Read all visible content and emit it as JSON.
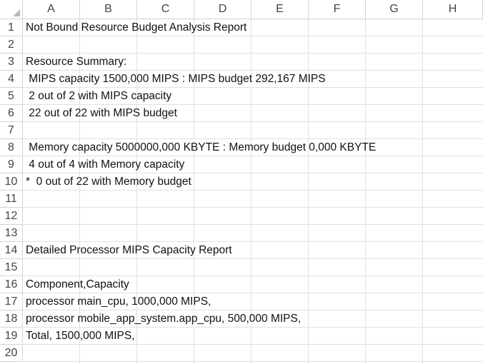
{
  "columns": [
    "A",
    "B",
    "C",
    "D",
    "E",
    "F",
    "G",
    "H"
  ],
  "rows": [
    "1",
    "2",
    "3",
    "4",
    "5",
    "6",
    "7",
    "8",
    "9",
    "10",
    "11",
    "12",
    "13",
    "14",
    "15",
    "16",
    "17",
    "18",
    "19",
    "20"
  ],
  "cells": [
    {
      "row": 1,
      "text": "Not Bound Resource Budget Analysis Report"
    },
    {
      "row": 2,
      "text": ""
    },
    {
      "row": 3,
      "text": "Resource Summary:"
    },
    {
      "row": 4,
      "text": " MIPS capacity 1500,000 MIPS : MIPS budget 292,167 MIPS"
    },
    {
      "row": 5,
      "text": " 2 out of 2 with MIPS capacity"
    },
    {
      "row": 6,
      "text": " 22 out of 22 with MIPS budget"
    },
    {
      "row": 7,
      "text": ""
    },
    {
      "row": 8,
      "text": " Memory capacity 5000000,000 KBYTE : Memory budget 0,000 KBYTE"
    },
    {
      "row": 9,
      "text": " 4 out of 4 with Memory capacity"
    },
    {
      "row": 10,
      "text": "*  0 out of 22 with Memory budget"
    },
    {
      "row": 11,
      "text": ""
    },
    {
      "row": 12,
      "text": ""
    },
    {
      "row": 13,
      "text": ""
    },
    {
      "row": 14,
      "text": "Detailed Processor MIPS Capacity Report"
    },
    {
      "row": 15,
      "text": ""
    },
    {
      "row": 16,
      "text": "Component,Capacity"
    },
    {
      "row": 17,
      "text": "processor main_cpu, 1000,000 MIPS,"
    },
    {
      "row": 18,
      "text": "processor mobile_app_system.app_cpu, 500,000 MIPS,"
    },
    {
      "row": 19,
      "text": "Total, 1500,000 MIPS,"
    },
    {
      "row": 20,
      "text": ""
    }
  ]
}
